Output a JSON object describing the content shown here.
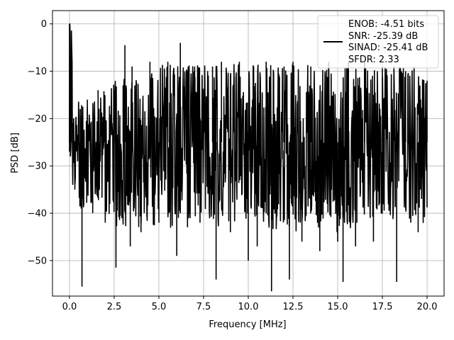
{
  "chart_data": {
    "type": "line",
    "title": "",
    "xlabel": "Frequency [MHz]",
    "ylabel": "PSD [dB]",
    "xlim": [
      -0.95,
      20.95
    ],
    "ylim": [
      -57.5,
      2.8
    ],
    "xticks": [
      0.0,
      2.5,
      5.0,
      7.5,
      10.0,
      12.5,
      15.0,
      17.5,
      20.0
    ],
    "xtick_labels": [
      "0.0",
      "2.5",
      "5.0",
      "7.5",
      "10.0",
      "12.5",
      "15.0",
      "17.5",
      "20.0"
    ],
    "yticks": [
      0,
      -10,
      -20,
      -30,
      -40,
      -50
    ],
    "ytick_labels": [
      "0",
      "−10",
      "−20",
      "−30",
      "−40",
      "−50"
    ],
    "grid": true,
    "legend_position": "top-right",
    "legend_lines": [
      "ENOB: -4.51 bits",
      "SNR: -25.39 dB",
      "SINAD: -25.41 dB",
      "SFDR: 2.33"
    ],
    "series": [
      {
        "color": "#000000",
        "description": "noise-like PSD trace, dense oscillation between envelope lows and highs",
        "points_sampled": [
          [
            0.0,
            0.0
          ],
          [
            0.05,
            -28
          ],
          [
            0.1,
            -13
          ],
          [
            0.3,
            -35
          ],
          [
            0.6,
            -18
          ],
          [
            0.7,
            -55.5
          ],
          [
            1.0,
            -16
          ],
          [
            1.3,
            -40
          ],
          [
            1.6,
            -14
          ],
          [
            2.0,
            -42
          ],
          [
            2.5,
            -14
          ],
          [
            2.6,
            -51.5
          ],
          [
            3.0,
            -13
          ],
          [
            3.1,
            -4.5
          ],
          [
            3.4,
            -47
          ],
          [
            3.5,
            -9
          ],
          [
            4.0,
            -44
          ],
          [
            4.5,
            -8
          ],
          [
            5.0,
            -42
          ],
          [
            5.5,
            -8
          ],
          [
            6.0,
            -49
          ],
          [
            6.2,
            -4
          ],
          [
            7.0,
            -9
          ],
          [
            7.3,
            -42
          ],
          [
            8.0,
            -9
          ],
          [
            8.2,
            -54
          ],
          [
            8.5,
            -8
          ],
          [
            9.0,
            -44
          ],
          [
            9.5,
            -8
          ],
          [
            10.0,
            -50
          ],
          [
            10.3,
            -9
          ],
          [
            10.5,
            -47
          ],
          [
            11.0,
            -8
          ],
          [
            11.3,
            -56.5
          ],
          [
            12.0,
            -9
          ],
          [
            12.3,
            -54
          ],
          [
            12.5,
            -8
          ],
          [
            13.0,
            -46
          ],
          [
            13.5,
            -9
          ],
          [
            14.0,
            -48
          ],
          [
            14.5,
            -8
          ],
          [
            15.0,
            -46
          ],
          [
            15.3,
            -54.5
          ],
          [
            15.6,
            -8
          ],
          [
            16.0,
            -47
          ],
          [
            16.5,
            -8
          ],
          [
            17.0,
            -46
          ],
          [
            17.5,
            -9
          ],
          [
            18.3,
            -54.5
          ],
          [
            18.8,
            -10
          ],
          [
            19.5,
            -44
          ],
          [
            20.0,
            -12
          ]
        ]
      }
    ]
  }
}
